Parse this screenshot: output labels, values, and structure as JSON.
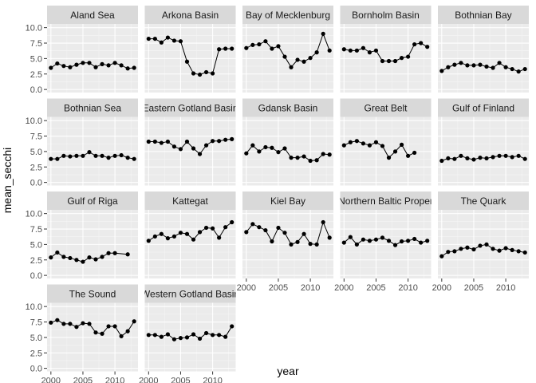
{
  "chart_data": {
    "type": "line",
    "xlabel": "year",
    "ylabel": "mean_secchi",
    "xlim": [
      1999.4,
      2013.6
    ],
    "ylim": [
      -0.5,
      10.6
    ],
    "x_ticks": [
      2000,
      2005,
      2010
    ],
    "x_tick_labels": [
      "2000",
      "2005",
      "2010"
    ],
    "y_ticks": [
      0,
      2.5,
      5,
      7.5,
      10
    ],
    "y_tick_labels": [
      "0.0",
      "2.5",
      "5.0",
      "7.5",
      "10.0"
    ],
    "grid": true,
    "ncol": 5,
    "panels": [
      {
        "name": "Aland Sea",
        "x": [
          2000,
          2001,
          2002,
          2003,
          2004,
          2005,
          2006,
          2007,
          2008,
          2009,
          2010,
          2011,
          2012,
          2013
        ],
        "y": [
          3.5,
          4.2,
          3.8,
          3.6,
          4.0,
          4.3,
          4.3,
          3.6,
          4.1,
          3.9,
          4.3,
          3.9,
          3.4,
          3.5
        ]
      },
      {
        "name": "Arkona Basin",
        "x": [
          2000,
          2001,
          2002,
          2003,
          2004,
          2005,
          2006,
          2007,
          2008,
          2009,
          2010,
          2011,
          2012,
          2013
        ],
        "y": [
          8.2,
          8.2,
          7.6,
          8.4,
          7.9,
          7.8,
          4.5,
          2.6,
          2.4,
          2.8,
          2.6,
          6.5,
          6.6,
          6.6
        ]
      },
      {
        "name": "Bay of Mecklenburg",
        "x": [
          2000,
          2001,
          2002,
          2003,
          2004,
          2005,
          2006,
          2007,
          2008,
          2009,
          2010,
          2011,
          2012,
          2013
        ],
        "y": [
          6.7,
          7.2,
          7.3,
          7.8,
          6.6,
          7.0,
          5.3,
          3.6,
          4.8,
          4.5,
          5.1,
          6.0,
          9.0,
          6.3
        ]
      },
      {
        "name": "Bornholm Basin",
        "x": [
          2000,
          2001,
          2002,
          2003,
          2004,
          2005,
          2006,
          2007,
          2008,
          2009,
          2010,
          2011,
          2012,
          2013
        ],
        "y": [
          6.5,
          6.3,
          6.3,
          6.7,
          6.0,
          6.3,
          4.6,
          4.6,
          4.6,
          5.1,
          5.3,
          7.3,
          7.5,
          6.9
        ]
      },
      {
        "name": "Bothnian Bay",
        "x": [
          2000,
          2001,
          2002,
          2003,
          2004,
          2005,
          2006,
          2007,
          2008,
          2009,
          2010,
          2011,
          2012,
          2013
        ],
        "y": [
          3.0,
          3.6,
          4.0,
          4.3,
          3.9,
          3.9,
          4.0,
          3.7,
          3.5,
          4.3,
          3.6,
          3.3,
          2.9,
          3.3
        ]
      },
      {
        "name": "Bothnian Sea",
        "x": [
          2000,
          2001,
          2002,
          2003,
          2004,
          2005,
          2006,
          2007,
          2008,
          2009,
          2010,
          2011,
          2012,
          2013
        ],
        "y": [
          3.8,
          3.8,
          4.3,
          4.2,
          4.3,
          4.3,
          4.9,
          4.3,
          4.3,
          4.0,
          4.3,
          4.4,
          4.0,
          3.8
        ]
      },
      {
        "name": "Eastern Gotland Basin",
        "x": [
          2000,
          2001,
          2002,
          2003,
          2004,
          2005,
          2006,
          2007,
          2008,
          2009,
          2010,
          2011,
          2012,
          2013
        ],
        "y": [
          6.6,
          6.6,
          6.4,
          6.6,
          5.8,
          5.4,
          6.6,
          5.5,
          4.6,
          6.0,
          6.7,
          6.7,
          6.9,
          7.0
        ]
      },
      {
        "name": "Gdansk Basin",
        "x": [
          2000,
          2001,
          2002,
          2003,
          2004,
          2005,
          2006,
          2007,
          2008,
          2009,
          2010,
          2011,
          2012,
          2013
        ],
        "y": [
          4.7,
          6.0,
          5.0,
          5.7,
          5.6,
          4.9,
          5.5,
          4.0,
          4.0,
          4.2,
          3.5,
          3.6,
          4.6,
          4.5
        ]
      },
      {
        "name": "Great Belt",
        "x": [
          2000,
          2001,
          2002,
          2003,
          2004,
          2005,
          2006,
          2007,
          2008,
          2009,
          2010,
          2011,
          2012
        ],
        "y": [
          6.0,
          6.5,
          6.7,
          6.3,
          6.0,
          6.5,
          5.9,
          4.0,
          5.0,
          6.1,
          4.3,
          4.8,
          null
        ]
      },
      {
        "name": "Gulf of Finland",
        "x": [
          2000,
          2001,
          2002,
          2003,
          2004,
          2005,
          2006,
          2007,
          2008,
          2009,
          2010,
          2011,
          2012,
          2013
        ],
        "y": [
          3.5,
          3.9,
          3.8,
          4.3,
          3.9,
          3.7,
          4.0,
          3.9,
          4.1,
          4.3,
          4.3,
          4.1,
          4.3,
          3.8
        ]
      },
      {
        "name": "Gulf of Riga",
        "x": [
          2000,
          2001,
          2002,
          2003,
          2004,
          2005,
          2006,
          2007,
          2008,
          2009,
          2010,
          2012
        ],
        "y": [
          2.9,
          3.7,
          3.0,
          2.8,
          2.5,
          2.2,
          2.9,
          2.6,
          3.0,
          3.6,
          3.6,
          3.4
        ]
      },
      {
        "name": "Kattegat",
        "x": [
          2000,
          2001,
          2002,
          2003,
          2004,
          2005,
          2006,
          2007,
          2008,
          2009,
          2010,
          2011,
          2012,
          2013
        ],
        "y": [
          5.6,
          6.3,
          6.7,
          6.0,
          6.3,
          6.9,
          6.7,
          5.8,
          7.0,
          7.7,
          7.6,
          6.1,
          7.8,
          8.6
        ]
      },
      {
        "name": "Kiel Bay",
        "x": [
          2000,
          2001,
          2002,
          2003,
          2004,
          2005,
          2006,
          2007,
          2008,
          2009,
          2010,
          2011,
          2012,
          2013
        ],
        "y": [
          7.0,
          8.3,
          7.8,
          7.3,
          5.5,
          7.7,
          6.9,
          5.0,
          5.4,
          6.7,
          5.1,
          5.0,
          8.6,
          6.1
        ]
      },
      {
        "name": "Northern Baltic Proper",
        "x": [
          2000,
          2001,
          2002,
          2003,
          2004,
          2005,
          2006,
          2007,
          2008,
          2009,
          2010,
          2011,
          2012,
          2013
        ],
        "y": [
          5.3,
          6.2,
          5.0,
          5.8,
          5.6,
          5.8,
          6.1,
          5.6,
          4.9,
          5.5,
          5.6,
          5.9,
          5.3,
          5.6
        ]
      },
      {
        "name": "The Quark",
        "x": [
          2000,
          2001,
          2002,
          2003,
          2004,
          2005,
          2006,
          2007,
          2008,
          2009,
          2010,
          2011,
          2012,
          2013
        ],
        "y": [
          3.1,
          3.8,
          3.9,
          4.3,
          4.5,
          4.2,
          4.8,
          5.0,
          4.3,
          4.0,
          4.4,
          4.1,
          3.9,
          3.7
        ]
      },
      {
        "name": "The Sound",
        "x": [
          2000,
          2001,
          2002,
          2003,
          2004,
          2005,
          2006,
          2007,
          2008,
          2009,
          2010,
          2011,
          2012,
          2013
        ],
        "y": [
          7.4,
          7.8,
          7.2,
          7.2,
          6.7,
          7.3,
          7.2,
          5.8,
          5.6,
          6.8,
          6.8,
          5.2,
          6.0,
          7.6
        ]
      },
      {
        "name": "Western Gotland Basin",
        "x": [
          2000,
          2001,
          2002,
          2003,
          2004,
          2005,
          2006,
          2007,
          2008,
          2009,
          2010,
          2011,
          2012,
          2013
        ],
        "y": [
          5.4,
          5.4,
          5.1,
          5.5,
          4.7,
          4.9,
          5.0,
          5.5,
          4.8,
          5.7,
          5.4,
          5.4,
          5.1,
          6.8
        ]
      }
    ]
  },
  "colors": {
    "panel_background": "#ebebeb",
    "grid_major": "#ffffff",
    "grid_minor": "#f5f5f5",
    "strip_background": "#d9d9d9",
    "line": "#000000",
    "point": "#000000",
    "tick": "#333333"
  }
}
